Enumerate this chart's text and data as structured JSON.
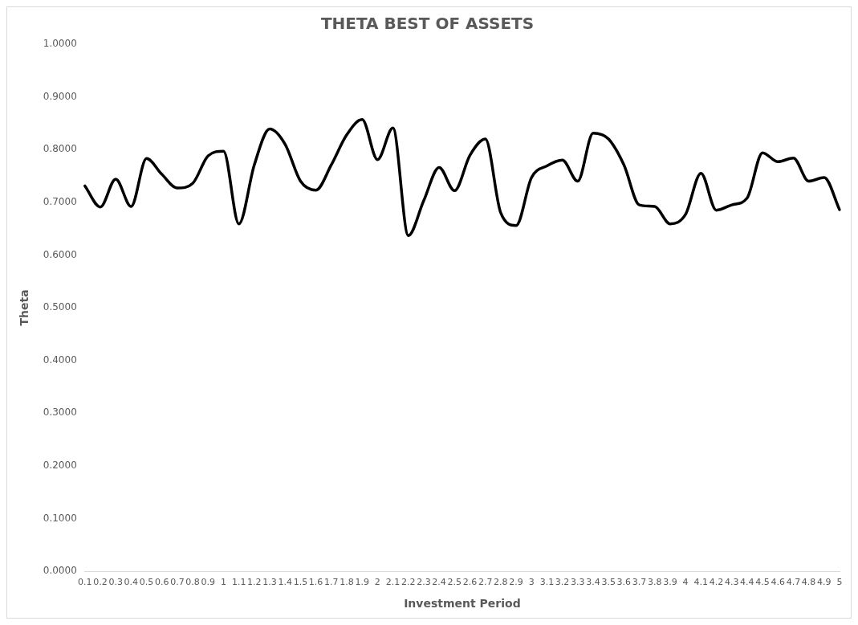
{
  "chart_data": {
    "type": "line",
    "title": "THETA BEST OF ASSETS",
    "xlabel": "Investment Period",
    "ylabel": "Theta",
    "categories": [
      "0.1",
      "0.2",
      "0.3",
      "0.4",
      "0.5",
      "0.6",
      "0.7",
      "0.8",
      "0.9",
      "1",
      "1.1",
      "1.2",
      "1.3",
      "1.4",
      "1.5",
      "1.6",
      "1.7",
      "1.8",
      "1.9",
      "2",
      "2.1",
      "2.2",
      "2.3",
      "2.4",
      "2.5",
      "2.6",
      "2.7",
      "2.8",
      "2.9",
      "3",
      "3.1",
      "3.2",
      "3.3",
      "3.4",
      "3.5",
      "3.6",
      "3.7",
      "3.8",
      "3.9",
      "4",
      "4.1",
      "4.2",
      "4.3",
      "4.4",
      "4.5",
      "4.6",
      "4.7",
      "4.8",
      "4.9",
      "5"
    ],
    "series": [
      {
        "color": "#000000",
        "values": [
          0.731,
          0.691,
          0.744,
          0.692,
          0.783,
          0.753,
          0.727,
          0.736,
          0.788,
          0.797,
          0.659,
          0.771,
          0.839,
          0.81,
          0.74,
          0.723,
          0.771,
          0.828,
          0.857,
          0.781,
          0.841,
          0.637,
          0.703,
          0.766,
          0.722,
          0.789,
          0.82,
          0.68,
          0.656,
          0.747,
          0.769,
          0.78,
          0.74,
          0.831,
          0.82,
          0.771,
          0.695,
          0.692,
          0.659,
          0.677,
          0.755,
          0.685,
          0.695,
          0.708,
          0.794,
          0.777,
          0.784,
          0.74,
          0.747,
          0.686
        ]
      }
    ],
    "ylim": [
      0,
      1
    ],
    "yticks": [
      {
        "value": 0,
        "label": "0.0000"
      },
      {
        "value": 0.1,
        "label": "0.1000"
      },
      {
        "value": 0.2,
        "label": "0.2000"
      },
      {
        "value": 0.3,
        "label": "0.3000"
      },
      {
        "value": 0.4,
        "label": "0.4000"
      },
      {
        "value": 0.5,
        "label": "0.5000"
      },
      {
        "value": 0.6,
        "label": "0.6000"
      },
      {
        "value": 0.7,
        "label": "0.7000"
      },
      {
        "value": 0.8,
        "label": "0.8000"
      },
      {
        "value": 0.9,
        "label": "0.9000"
      },
      {
        "value": 1,
        "label": "1.0000"
      }
    ],
    "grid": false,
    "legend": false,
    "marker": "none",
    "line_style": "solid"
  }
}
